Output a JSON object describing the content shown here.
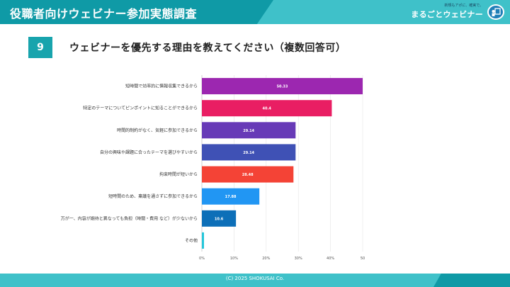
{
  "header": {
    "title": "役職者向けウェビナー参加実態調査"
  },
  "brand": {
    "tagline": "新規もアポに、確実で。",
    "name": "まるごとウェビナー"
  },
  "question": {
    "number": "9",
    "text": "ウェビナーを優先する理由を教えてください（複数回答可）"
  },
  "footer": {
    "copyright": "(C) 2025 SHOKUSAI Co."
  },
  "colors": {
    "header_dark": "#0f9aa6",
    "header_light": "#3fc1c9",
    "bars": [
      "#9c27b0",
      "#e91e63",
      "#673ab7",
      "#3f51b5",
      "#f44336",
      "#2196f3",
      "#0d6fb8",
      "#26c6da"
    ]
  },
  "chart_data": {
    "type": "bar",
    "orientation": "horizontal",
    "categories": [
      "短時間で効率的に情報収集できるから",
      "特定のテーマについてピンポイントに知ることができるから",
      "時間的制約がなく、気軽に参加できるから",
      "自分の興味や課題に合ったテーマを選びやすいから",
      "拘束時間が短いから",
      "短時間のため、稟議を通さずに参加できるから",
      "万が一、内容が期待と異なっても負担（時間・費用 など）が少ないから",
      "その他"
    ],
    "values": [
      50.33,
      40.4,
      29.14,
      29.14,
      28.48,
      17.88,
      10.6,
      0.66
    ],
    "value_labels": [
      "50.33",
      "40.4",
      "29.14",
      "29.14",
      "28.48",
      "17.88",
      "10.6",
      ""
    ],
    "xlim": [
      0,
      50
    ],
    "ticks": [
      "0%",
      "10%",
      "20%",
      "30%",
      "40%",
      "50"
    ],
    "grid": true,
    "legend": "none"
  }
}
